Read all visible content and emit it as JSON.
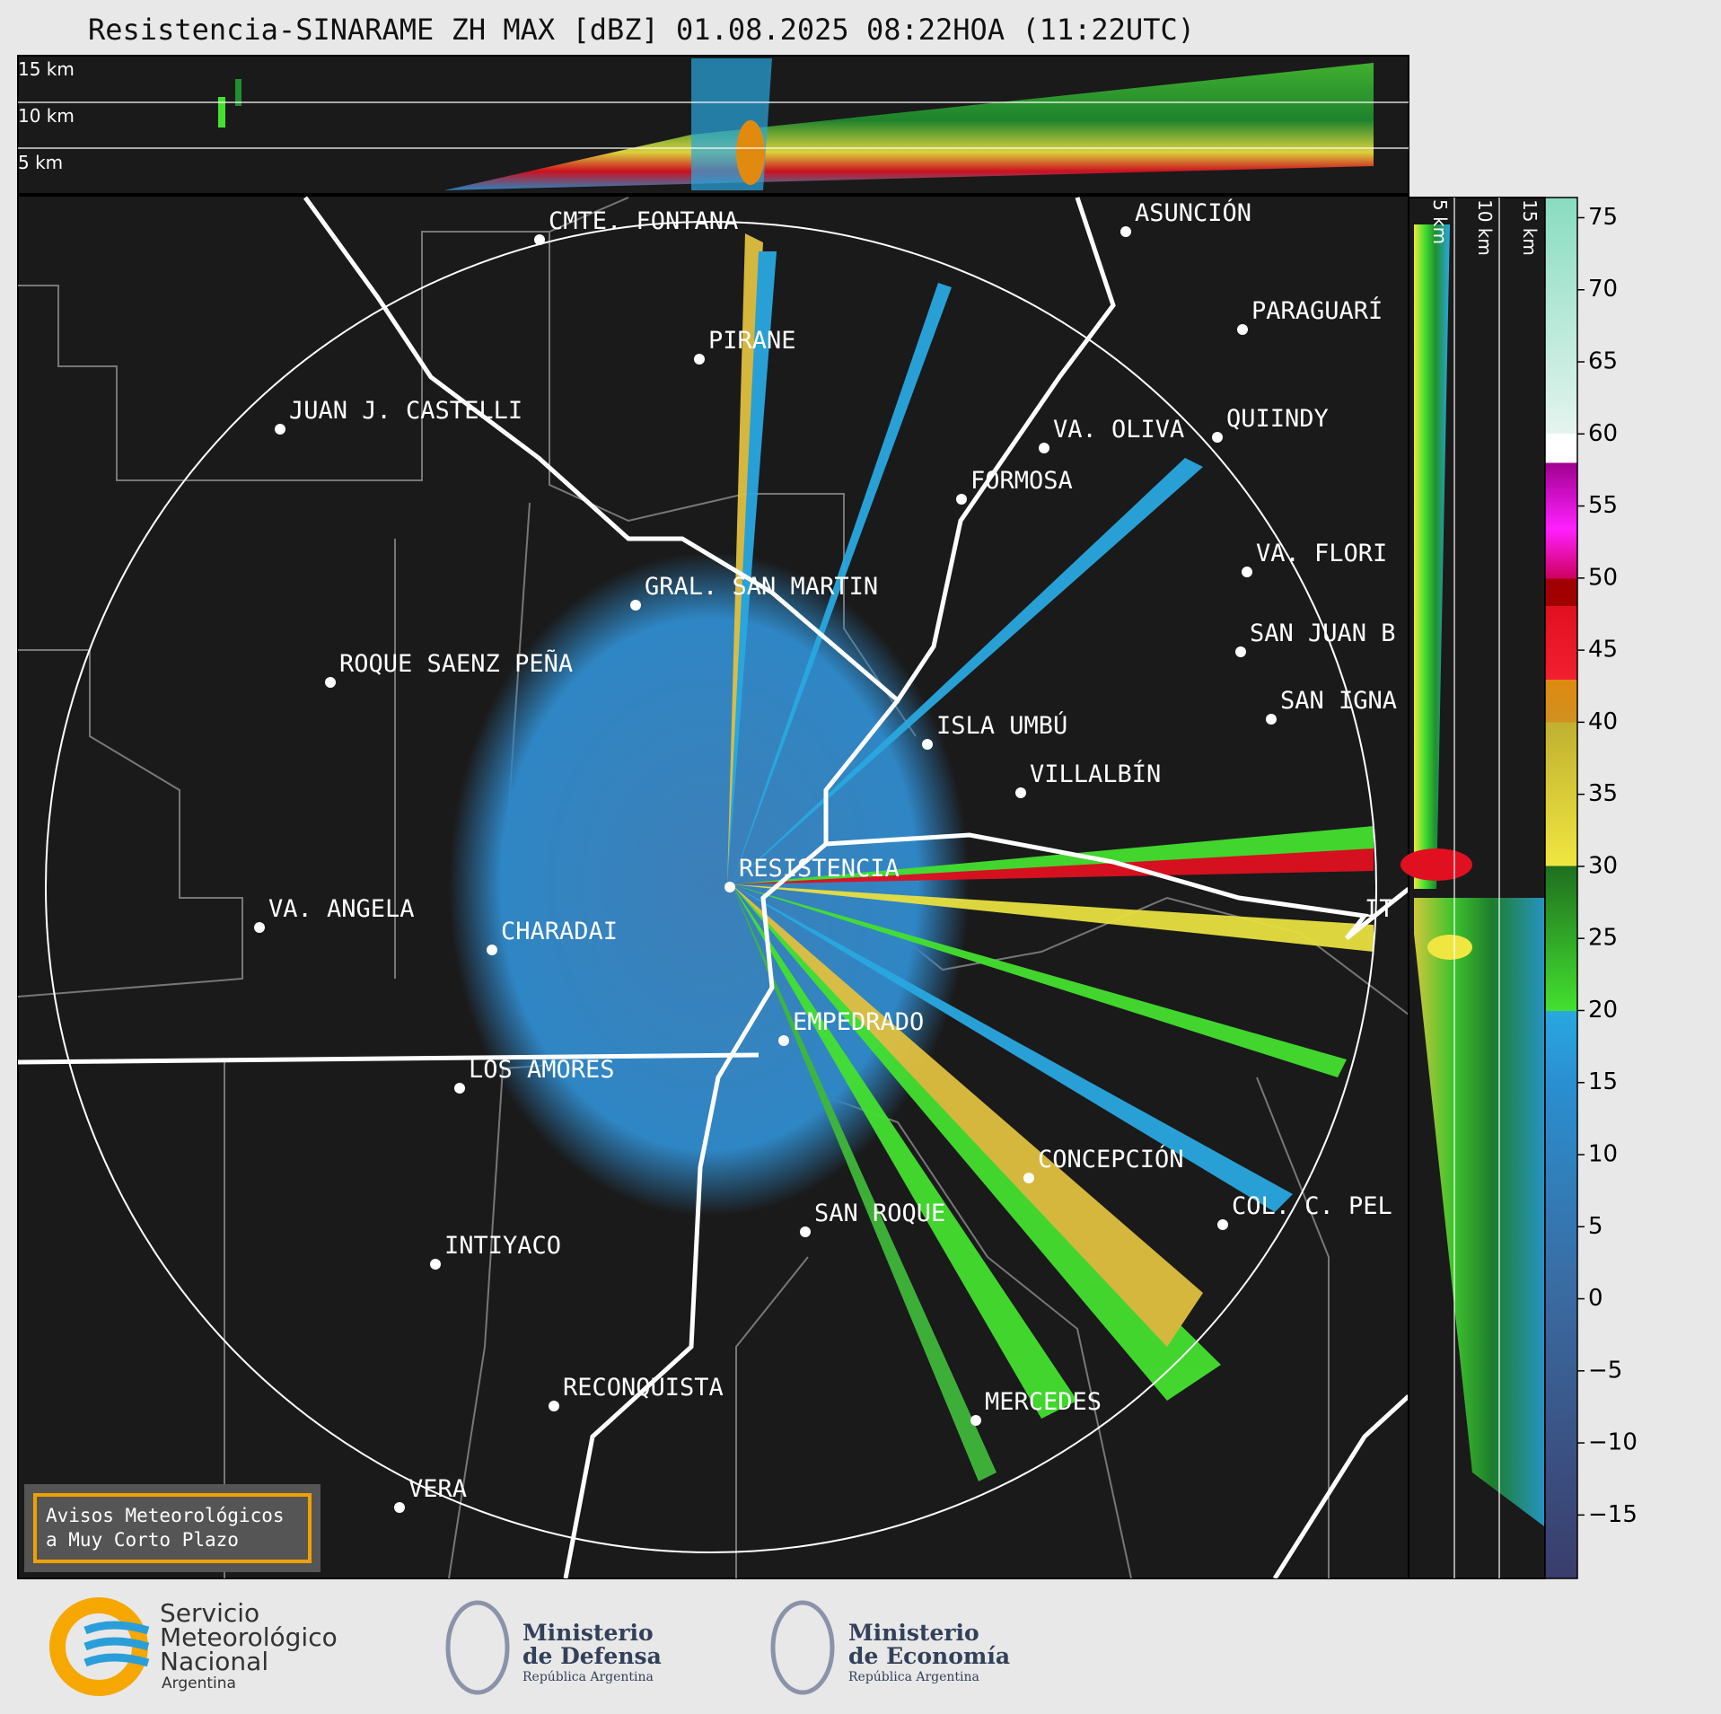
{
  "title": "Resistencia-SINARAME ZH MAX [dBZ] 01.08.2025 08:22HOA (11:22UTC)",
  "top_panel": {
    "height_labels": [
      "15 km",
      "10 km",
      "5 km"
    ]
  },
  "side_panel": {
    "height_labels": [
      "5 km",
      "10 km",
      "15 km"
    ]
  },
  "map": {
    "places": [
      "CMTE. FONTANA",
      "PIRANE",
      "JUAN J. CASTELLI",
      "VA. OLIVA",
      "QUIINDY",
      "ASUNCIÓN",
      "PARAGUARÍ",
      "FORMOSA",
      "VA. FLORI",
      "GRAL. SAN MARTIN",
      "SAN JUAN B",
      "SAN IGNA",
      "ROQUE SAENZ PEÑA",
      "ISLA UMBÚ",
      "VILLALBÍN",
      "RESISTENCIA",
      "VA. ANGELA",
      "CHARADAI",
      "IT",
      "EMPEDRADO",
      "LOS AMORES",
      "CONCEPCIÓN",
      "COL. C. PEL",
      "SAN ROQUE",
      "INTIYACO",
      "RECONQUISTA",
      "MERCEDES",
      "VERA"
    ]
  },
  "colorbar": {
    "ylim": [
      -19.4,
      76.4
    ],
    "ticks": [
      {
        "value": -15,
        "label": "−15"
      },
      {
        "value": -10,
        "label": "−10"
      },
      {
        "value": -5,
        "label": "−5"
      },
      0,
      5,
      10,
      15,
      20,
      25,
      30,
      35,
      40,
      45,
      50,
      55,
      60,
      65,
      70,
      75
    ]
  },
  "warning_box": {
    "lines": [
      "Avisos Meteorológicos",
      "a Muy Corto Plazo"
    ]
  },
  "footer": {
    "smn": [
      "Servicio",
      "Meteorológico",
      "Nacional",
      "Argentina"
    ],
    "defensa": [
      "Ministerio",
      "de Defensa",
      "República Argentina"
    ],
    "economia": [
      "Ministerio",
      "de Economía",
      "República Argentina"
    ]
  }
}
